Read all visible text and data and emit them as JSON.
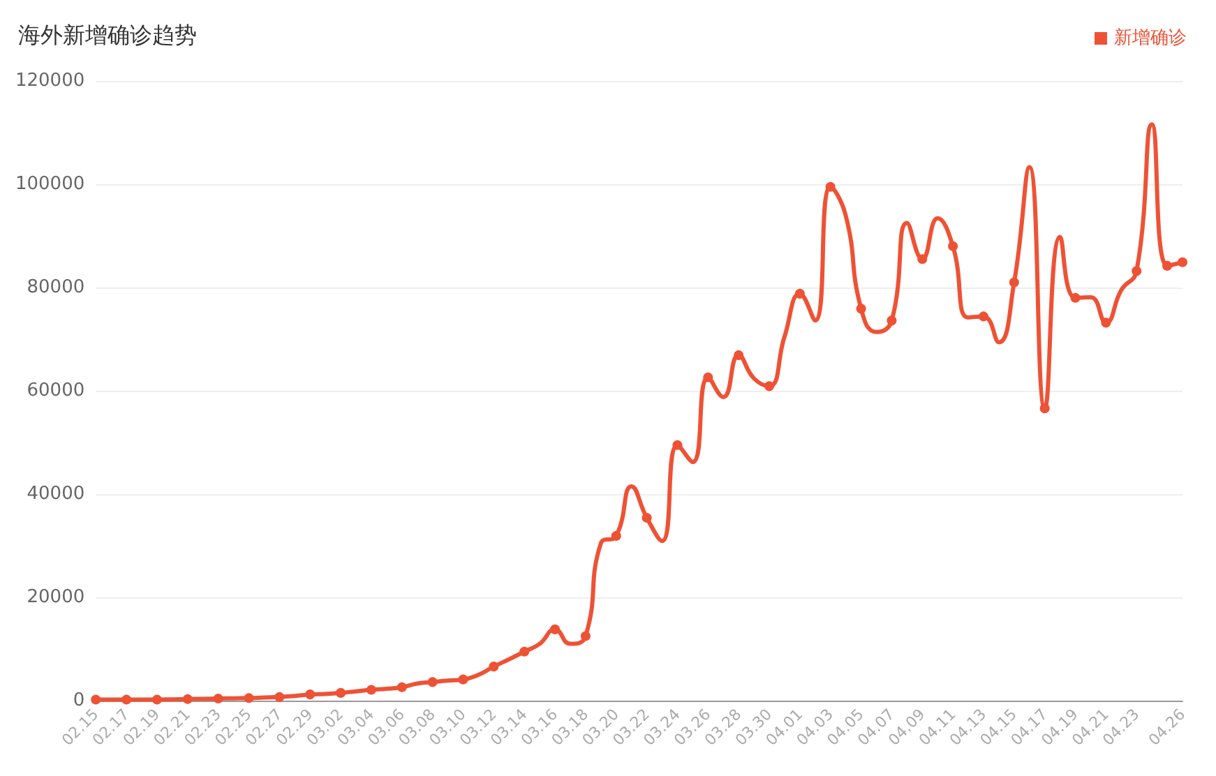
{
  "chart_data": {
    "type": "line",
    "title": "海外新增确诊趋势",
    "categories": [
      "02.15",
      null,
      "02.17",
      null,
      "02.19",
      null,
      "02.21",
      null,
      "02.23",
      null,
      "02.25",
      null,
      "02.27",
      null,
      "02.29",
      null,
      "03.02",
      null,
      "03.04",
      null,
      "03.06",
      null,
      "03.08",
      null,
      "03.10",
      null,
      "03.12",
      null,
      "03.14",
      null,
      "03.16",
      null,
      "03.18",
      null,
      "03.20",
      null,
      "03.22",
      null,
      "03.24",
      null,
      "03.26",
      null,
      "03.28",
      null,
      "03.30",
      null,
      "04.01",
      null,
      "04.03",
      null,
      "04.05",
      null,
      "04.07",
      null,
      "04.09",
      null,
      "04.11",
      null,
      "04.13",
      null,
      "04.15",
      null,
      "04.17",
      null,
      "04.19",
      null,
      "04.21",
      null,
      "04.23",
      null,
      null,
      "04.26"
    ],
    "series": [
      {
        "name": "新增确诊",
        "color": "#ee5235",
        "values": [
          200,
          200,
          200,
          200,
          200,
          250,
          300,
          350,
          400,
          450,
          500,
          600,
          700,
          900,
          1200,
          1300,
          1500,
          1800,
          2100,
          2300,
          2600,
          3300,
          3600,
          3900,
          4100,
          5000,
          6600,
          8000,
          9500,
          11000,
          13800,
          11000,
          12500,
          30500,
          31900,
          41500,
          35400,
          30900,
          49500,
          46200,
          62600,
          58800,
          66900,
          62400,
          60900,
          70500,
          78800,
          73600,
          99500,
          93900,
          75900,
          71400,
          73600,
          92500,
          85500,
          93400,
          88000,
          74200,
          74400,
          69400,
          81000,
          103300,
          56600,
          89800,
          78000,
          78100,
          73200,
          79500,
          83200,
          111600,
          84200,
          84900
        ]
      }
    ],
    "ylim": [
      0,
      120000
    ],
    "yticks": [
      0,
      20000,
      40000,
      60000,
      80000,
      100000,
      120000
    ],
    "grid": "y",
    "legend": "top right",
    "marker": "circle",
    "line_style": "solid"
  }
}
